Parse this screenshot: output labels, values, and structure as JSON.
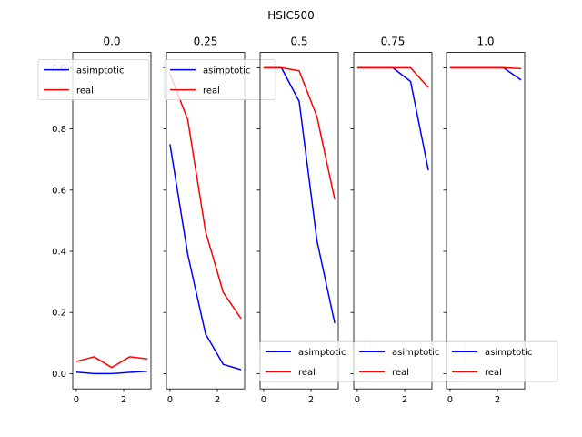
{
  "suptitle": "HSIC500",
  "chart_data": {
    "type": "line",
    "shared_ylim": [
      -0.05,
      1.05
    ],
    "yticks": [
      0.0,
      0.2,
      0.4,
      0.6,
      0.8,
      1.0
    ],
    "ytick_labels": [
      "0.0",
      "0.2",
      "0.4",
      "0.6",
      "0.8",
      "1.0"
    ],
    "xticks": [
      0,
      2
    ],
    "xtick_labels": [
      "0",
      "2"
    ],
    "xlim": [
      -0.15,
      3.15
    ],
    "x": [
      0,
      0.75,
      1.5,
      2.25,
      3
    ],
    "colors": {
      "asimptotic": "#0000ff",
      "real": "#ff0000"
    },
    "panels": [
      {
        "title": "0.0",
        "legend_position": "upper-right",
        "series": [
          {
            "name": "asimptotic",
            "values": [
              0.005,
              0.0,
              0.0,
              0.004,
              0.008
            ]
          },
          {
            "name": "real",
            "values": [
              0.04,
              0.055,
              0.02,
              0.055,
              0.048
            ]
          }
        ]
      },
      {
        "title": "0.25",
        "legend_position": "upper-right",
        "series": [
          {
            "name": "asimptotic",
            "values": [
              0.75,
              0.39,
              0.13,
              0.03,
              0.013
            ]
          },
          {
            "name": "real",
            "values": [
              0.98,
              0.83,
              0.465,
              0.265,
              0.18
            ]
          }
        ]
      },
      {
        "title": "0.5",
        "legend_position": "lower-right",
        "series": [
          {
            "name": "asimptotic",
            "values": [
              1.0,
              1.0,
              0.89,
              0.435,
              0.165
            ]
          },
          {
            "name": "real",
            "values": [
              1.0,
              1.0,
              0.99,
              0.84,
              0.57
            ]
          }
        ]
      },
      {
        "title": "0.75",
        "legend_position": "lower-right",
        "series": [
          {
            "name": "asimptotic",
            "values": [
              1.0,
              1.0,
              1.0,
              0.955,
              0.665
            ]
          },
          {
            "name": "real",
            "values": [
              1.0,
              1.0,
              1.0,
              1.0,
              0.935
            ]
          }
        ]
      },
      {
        "title": "1.0",
        "legend_position": "lower-right",
        "series": [
          {
            "name": "asimptotic",
            "values": [
              1.0,
              1.0,
              1.0,
              1.0,
              0.96
            ]
          },
          {
            "name": "real",
            "values": [
              1.0,
              1.0,
              1.0,
              1.0,
              0.997
            ]
          }
        ]
      }
    ]
  }
}
